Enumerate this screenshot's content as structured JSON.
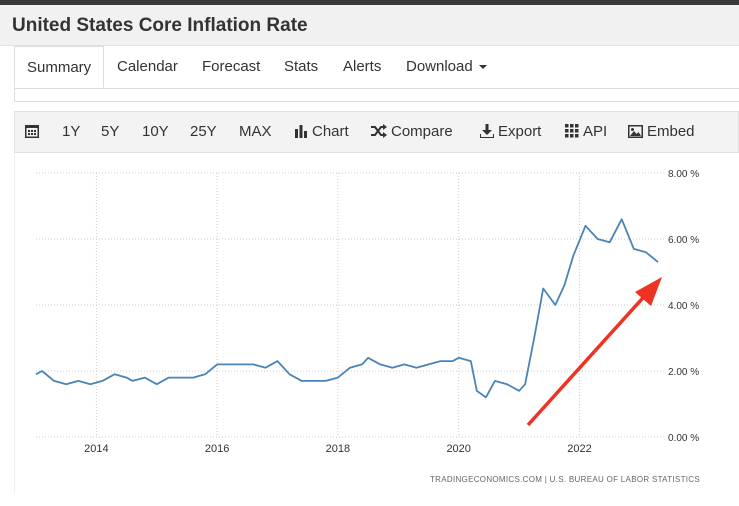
{
  "header": {
    "title": "United States Core Inflation Rate"
  },
  "tabs": [
    {
      "label": "Summary",
      "active": true
    },
    {
      "label": "Calendar"
    },
    {
      "label": "Forecast"
    },
    {
      "label": "Stats"
    },
    {
      "label": "Alerts"
    },
    {
      "label": "Download"
    }
  ],
  "toolbar": {
    "ranges": [
      "1Y",
      "5Y",
      "10Y",
      "25Y",
      "MAX"
    ],
    "chart_label": "Chart",
    "compare_label": "Compare",
    "export_label": "Export",
    "api_label": "API",
    "embed_label": "Embed",
    "icons": [
      "calendar-icon",
      "bar-chart-icon",
      "shuffle-icon",
      "download-icon",
      "grid-icon",
      "image-icon"
    ]
  },
  "source_text": "TRADINGECONOMICS.COM | U.S. BUREAU OF LABOR STATISTICS",
  "colors": {
    "line": "#4a84b6",
    "arrow": "#ee3322",
    "grid": "#cccccc",
    "header_bg": "#f1f1f1"
  },
  "chart_data": {
    "type": "line",
    "x_ticks": [
      "2014",
      "2016",
      "2018",
      "2020",
      "2022"
    ],
    "y_ticks": [
      "0.00 %",
      "2.00 %",
      "4.00 %",
      "6.00 %",
      "8.00 %"
    ],
    "ylim": [
      0,
      8
    ],
    "xlim": [
      2013.0,
      2023.4
    ],
    "grid": true,
    "y_axis_position": "right",
    "series": [
      {
        "x": [
          2013.0,
          2013.1,
          2013.3,
          2013.5,
          2013.7,
          2013.9,
          2014.1,
          2014.3,
          2014.5,
          2014.6,
          2014.8,
          2015.0,
          2015.2,
          2015.4,
          2015.6,
          2015.8,
          2016.0,
          2016.2,
          2016.4,
          2016.6,
          2016.8,
          2017.0,
          2017.2,
          2017.4,
          2017.6,
          2017.8,
          2018.0,
          2018.2,
          2018.4,
          2018.5,
          2018.7,
          2018.9,
          2019.1,
          2019.3,
          2019.5,
          2019.7,
          2019.9,
          2020.0,
          2020.2,
          2020.3,
          2020.45,
          2020.6,
          2020.8,
          2021.0,
          2021.1,
          2021.25,
          2021.4,
          2021.6,
          2021.75,
          2021.9,
          2022.1,
          2022.3,
          2022.5,
          2022.7,
          2022.9,
          2023.1,
          2023.3
        ],
        "y": [
          1.9,
          2.0,
          1.7,
          1.6,
          1.7,
          1.6,
          1.7,
          1.9,
          1.8,
          1.7,
          1.8,
          1.6,
          1.8,
          1.8,
          1.8,
          1.9,
          2.2,
          2.2,
          2.2,
          2.2,
          2.1,
          2.3,
          1.9,
          1.7,
          1.7,
          1.7,
          1.8,
          2.1,
          2.2,
          2.4,
          2.2,
          2.1,
          2.2,
          2.1,
          2.2,
          2.3,
          2.3,
          2.4,
          2.3,
          1.4,
          1.2,
          1.7,
          1.6,
          1.4,
          1.6,
          3.0,
          4.5,
          4.0,
          4.6,
          5.5,
          6.4,
          6.0,
          5.9,
          6.6,
          5.7,
          5.6,
          5.3
        ]
      }
    ]
  }
}
